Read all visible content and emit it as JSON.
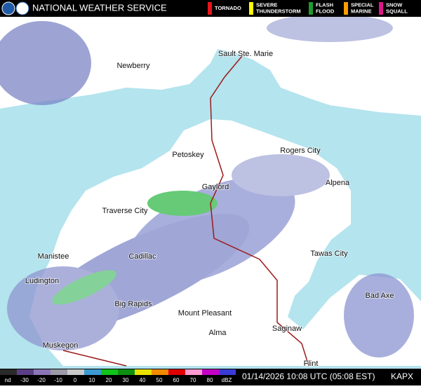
{
  "header": {
    "title": "NATIONAL WEATHER SERVICE"
  },
  "warnings": [
    {
      "lines": [
        "TORNADO"
      ]
    },
    {
      "lines": [
        "SEVERE",
        "THUNDERSTORM"
      ]
    },
    {
      "lines": [
        "FLASH",
        "FLOOD"
      ]
    },
    {
      "lines": [
        "SPECIAL",
        "MARINE"
      ]
    },
    {
      "lines": [
        "SNOW",
        "SQUALL"
      ]
    }
  ],
  "cities": [
    "Sault Ste. Marie",
    "Newberry",
    "Petoskey",
    "Rogers City",
    "Gaylord",
    "Alpena",
    "Traverse City",
    "Manistee",
    "Cadillac",
    "Tawas City",
    "Ludington",
    "Bad Axe",
    "Big Rapids",
    "Mount Pleasant",
    "Saginaw",
    "Alma",
    "Muskegon",
    "Flint"
  ],
  "scale": {
    "labels": [
      "nd",
      "-30",
      "-20",
      "-10",
      "0",
      "10",
      "20",
      "30",
      "40",
      "50",
      "60",
      "70",
      "80",
      "dBZ"
    ]
  },
  "footer": {
    "timestamp": "01/14/2026 10:08 UTC (05:08 EST)",
    "station": "KAPX"
  }
}
